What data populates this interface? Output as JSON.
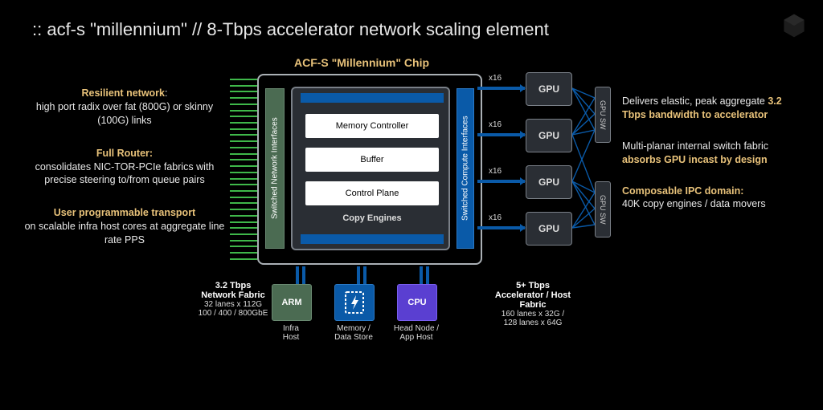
{
  "title": ":: acf-s \"millennium\" // 8-Tbps accelerator network scaling element",
  "chip_title": "ACF-S \"Millennium\" Chip",
  "left_features": [
    {
      "bold": "Resilient network",
      "plain": ":\nhigh port radix over fat (800G) or skinny (100G) links"
    },
    {
      "bold": "Full Router:",
      "plain": "\nconsolidates NIC-TOR-PCIe fabrics with precise steering to/from queue pairs"
    },
    {
      "bold": "User programmable transport",
      "plain": "\non scalable infra host cores at aggregate line rate PPS"
    }
  ],
  "right_features": [
    {
      "plain_pre": "Delivers elastic, peak aggregate ",
      "bold": "3.2 Tbps bandwidth to accelerator",
      "plain_post": ""
    },
    {
      "plain_pre": "Multi-planar internal switch fabric ",
      "bold": "absorbs GPU incast by design",
      "plain_post": ""
    },
    {
      "plain_pre": "",
      "bold": "Composable IPC domain:",
      "plain_post": "\n40K copy engines / data movers"
    }
  ],
  "chip": {
    "sni": "Switched Network Interfaces",
    "sci": "Switched Compute Interfaces",
    "blocks": {
      "mc": "Memory Controller",
      "buf": "Buffer",
      "cp": "Control Plane"
    },
    "copy_engines": "Copy Engines"
  },
  "gpu_label": "GPU",
  "x16_label": "x16",
  "gpusw_label": "GPU SW",
  "bottom": {
    "arm": "ARM",
    "cpu": "CPU",
    "infra": "Infra\nHost",
    "mem": "Memory /\nData Store",
    "head": "Head Node /\nApp Host"
  },
  "fabric_left": {
    "title": "3.2 Tbps\nNetwork Fabric",
    "sub": "32 lanes x 112G\n100 / 400 / 800GbE"
  },
  "fabric_right": {
    "title": "5+ Tbps\nAccelerator / Host Fabric",
    "sub": "160 lanes x 32G /\n128 lanes x 64G"
  },
  "colors": {
    "background": "#000000",
    "text": "#e8e8e8",
    "gold": "#e8c27a",
    "green_pin": "#3fb84a",
    "sni_fill": "#4b6b52",
    "sci_fill": "#0a5aa8",
    "cpu_fill": "#5a3fd1",
    "block_white": "#ffffff",
    "chip_border": "#aab0b5",
    "gpu_fill": "#2a2e34",
    "gpu_border": "#7a8088"
  },
  "counts": {
    "pins": 30,
    "gpus": 4
  }
}
